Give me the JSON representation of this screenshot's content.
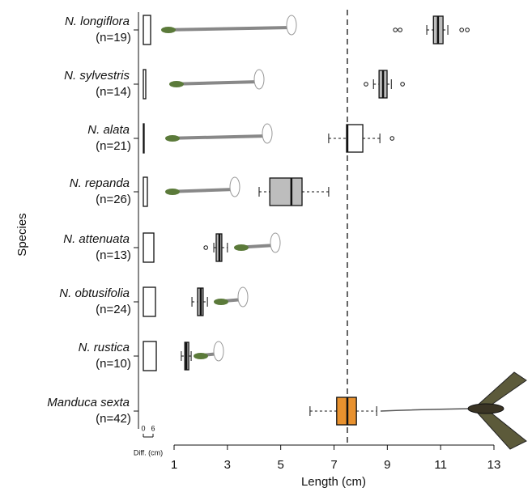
{
  "chart_data": {
    "type": "boxplot",
    "orientation": "horizontal",
    "xlabel": "Length (cm)",
    "ylabel": "Species",
    "xlim": [
      1,
      13
    ],
    "xticks": [
      1,
      3,
      5,
      7,
      9,
      11,
      13
    ],
    "reference_line": 7.5,
    "diff_label": "Diff. (cm)",
    "diff_lim": [
      0,
      6
    ],
    "diff_ticks": [
      0,
      6
    ],
    "boxes": [
      {
        "name": "N. longiflora",
        "sample": "(n=19)",
        "color": "#bdbdbd",
        "whisker_low": 10.48,
        "q1": 10.73,
        "median": 10.9,
        "q3": 11.09,
        "whisker_high": 11.27,
        "outliers": [
          9.3,
          9.48,
          11.79,
          12.0
        ],
        "diff": 4.5
      },
      {
        "name": "N. sylvestris",
        "sample": "(n=14)",
        "color": "#bdbdbd",
        "whisker_low": 8.48,
        "q1": 8.69,
        "median": 8.84,
        "q3": 8.99,
        "whisker_high": 9.15,
        "outliers": [
          8.2,
          9.57
        ],
        "diff": 1.5
      },
      {
        "name": "N. alata",
        "sample": "(n=21)",
        "color": "#ffffff",
        "whisker_low": 6.8,
        "q1": 7.47,
        "median": 7.5,
        "q3": 8.08,
        "whisker_high": 8.72,
        "outliers": [
          9.18
        ],
        "diff": 0.5
      },
      {
        "name": "N. repanda",
        "sample": "(n=26)",
        "color": "#bdbdbd",
        "whisker_low": 4.19,
        "q1": 4.59,
        "median": 5.4,
        "q3": 5.8,
        "whisker_high": 6.8,
        "outliers": [],
        "diff": 2.5
      },
      {
        "name": "N. attenuata",
        "sample": "(n=13)",
        "color": "#bdbdbd",
        "whisker_low": 2.49,
        "q1": 2.58,
        "median": 2.7,
        "q3": 2.79,
        "whisker_high": 3.0,
        "outliers": [
          2.19
        ],
        "diff": 6.5
      },
      {
        "name": "N. obtusifolia",
        "sample": "(n=24)",
        "color": "#bdbdbd",
        "whisker_low": 1.67,
        "q1": 1.88,
        "median": 2.0,
        "q3": 2.09,
        "whisker_high": 2.25,
        "outliers": [],
        "diff": 7.5
      },
      {
        "name": "N. rustica",
        "sample": "(n=10)",
        "color": "#bdbdbd",
        "whisker_low": 1.27,
        "q1": 1.4,
        "median": 1.46,
        "q3": 1.55,
        "whisker_high": 1.64,
        "outliers": [],
        "diff": 8
      },
      {
        "name": "Manduca sexta",
        "sample": "(n=42)",
        "color": "#e8912e",
        "whisker_low": 6.1,
        "q1": 7.1,
        "median": 7.5,
        "q3": 7.84,
        "whisker_high": 8.6,
        "outliers": []
      }
    ]
  }
}
